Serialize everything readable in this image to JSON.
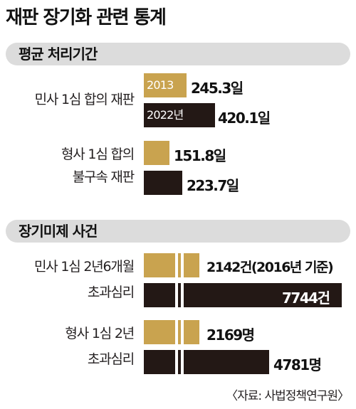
{
  "title": "재판 장기화 관련 통계",
  "sections": {
    "avg": "평균 처리기간",
    "backlog": "장기미제 사건"
  },
  "legend": {
    "y2013": "2013",
    "y2022": "2022년"
  },
  "source": "〈자료: 사법정책연구원〉",
  "chart_data": [
    {
      "type": "bar",
      "title": "평균 처리기간",
      "categories": [
        "민사 1심 합의 재판",
        "형사 1심 합의 불구속 재판"
      ],
      "series": [
        {
          "name": "2013",
          "values": [
            245.3,
            151.8
          ],
          "labels": [
            "245.3일",
            "151.8일"
          ]
        },
        {
          "name": "2022년",
          "values": [
            420.1,
            223.7
          ],
          "labels": [
            "420.1일",
            "223.7일"
          ]
        }
      ],
      "colors": [
        "#c9a34f",
        "#231815"
      ]
    },
    {
      "type": "bar",
      "title": "장기미제 사건",
      "categories": [
        "민사 1심 2년6개월 초과심리",
        "형사 1심 2년 초과심리"
      ],
      "series": [
        {
          "name": "2013",
          "values": [
            2142,
            2169
          ],
          "labels": [
            "2142건(2016년 기준)",
            "2169명"
          ]
        },
        {
          "name": "2022년",
          "values": [
            7744,
            4781
          ],
          "labels": [
            "7744건",
            "4781명"
          ]
        }
      ],
      "broken_axis": true,
      "colors": [
        "#c9a34f",
        "#231815"
      ]
    }
  ],
  "rows": {
    "r1": {
      "label1": "민사 1심 합의 재판",
      "label2": ""
    },
    "r2": {
      "label1": "형사 1심 합의",
      "label2": "불구속 재판"
    },
    "r3": {
      "label1": "민사 1심 2년6개월",
      "label2": "초과심리"
    },
    "r4": {
      "label1": "형사 1심 2년",
      "label2": "초과심리"
    }
  }
}
